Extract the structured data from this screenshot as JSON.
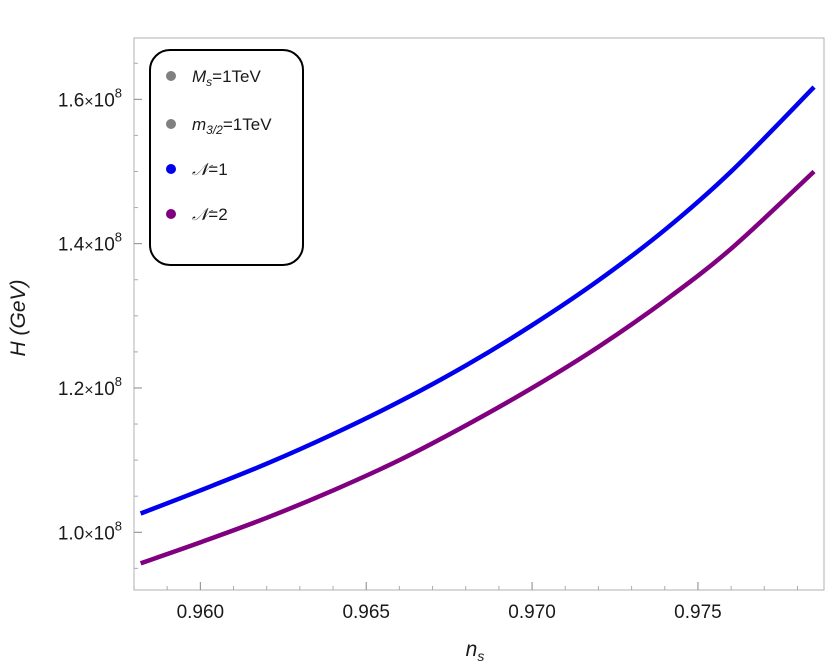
{
  "chart_data": {
    "type": "line",
    "xlabel": "n",
    "xlabel_sub": "s",
    "ylabel": "H (GeV)",
    "xlim": [
      0.958,
      0.9788
    ],
    "ylim": [
      92000000.0,
      168500000.0
    ],
    "x_ticks": [
      0.96,
      0.965,
      0.97,
      0.975
    ],
    "x_tick_labels": [
      "0.960",
      "0.965",
      "0.970",
      "0.975"
    ],
    "y_ticks": [
      100000000.0,
      120000000.0,
      140000000.0,
      160000000.0
    ],
    "y_tick_labels": [
      {
        "mantissa": "1.0",
        "times": "×",
        "base": "10",
        "exp": "8"
      },
      {
        "mantissa": "1.2",
        "times": "×",
        "base": "10",
        "exp": "8"
      },
      {
        "mantissa": "1.4",
        "times": "×",
        "base": "10",
        "exp": "8"
      },
      {
        "mantissa": "1.6",
        "times": "×",
        "base": "10",
        "exp": "8"
      }
    ],
    "grid": false,
    "legend_position": "top-left",
    "legend": [
      {
        "main": "M",
        "sub": "s",
        "rest": "=1TeV",
        "color": "#808080"
      },
      {
        "main": "m",
        "sub": "3/2",
        "rest": "=1TeV",
        "color": "#808080"
      },
      {
        "main": "𝒩",
        "sub": "",
        "rest": "=1",
        "color": "#0000ee"
      },
      {
        "main": "𝒩",
        "sub": "",
        "rest": "=2",
        "color": "#800080"
      }
    ],
    "series": [
      {
        "color": "#0000ee",
        "x": [
          0.9582,
          0.96,
          0.962,
          0.964,
          0.966,
          0.968,
          0.97,
          0.972,
          0.974,
          0.976,
          0.9785
        ],
        "y": [
          102600000.0,
          105800000.0,
          109500000.0,
          113600000.0,
          118100000.0,
          123100000.0,
          128700000.0,
          134900000.0,
          141900000.0,
          150000000.0,
          161700000.0
        ]
      },
      {
        "color": "#800080",
        "x": [
          0.9582,
          0.96,
          0.962,
          0.964,
          0.966,
          0.968,
          0.97,
          0.972,
          0.974,
          0.976,
          0.9785
        ],
        "y": [
          95700000.0,
          98600000.0,
          102000000.0,
          105800000.0,
          110000000.0,
          114800000.0,
          120000000.0,
          125700000.0,
          132100000.0,
          139300000.0,
          150000000.0
        ]
      }
    ]
  }
}
